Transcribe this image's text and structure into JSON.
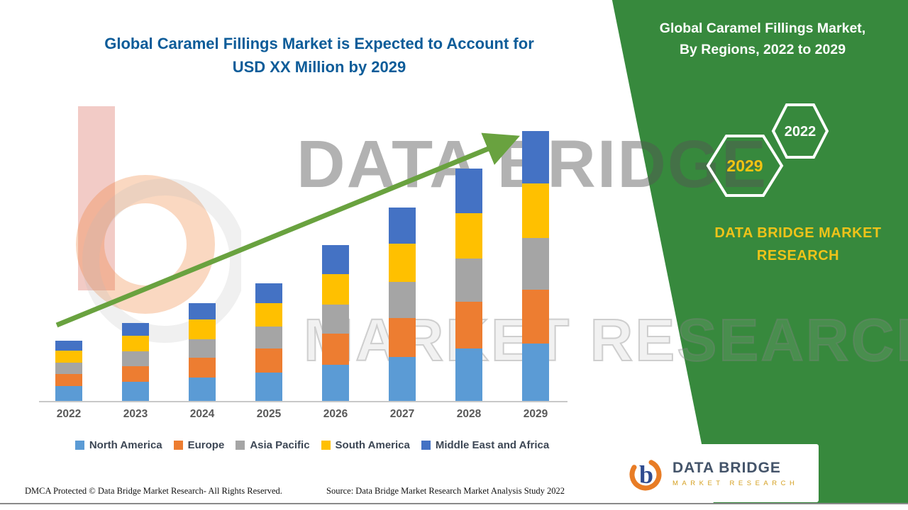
{
  "header": {
    "title_line1": "Global Caramel Fillings Market is Expected to Account for",
    "title_line2": "USD XX Million by 2029"
  },
  "side_panel": {
    "title_line1": "Global Caramel Fillings Market,",
    "title_line2": "By Regions, 2022 to 2029",
    "hexagon_front_label": "2029",
    "hexagon_back_label": "2022",
    "brand_line1": "DATA BRIDGE MARKET",
    "brand_line2": "RESEARCH"
  },
  "watermark": {
    "line1": "DATA BRIDGE",
    "line2": "MARKET RESEARCH"
  },
  "chart_data": {
    "type": "bar",
    "stacked": true,
    "title": "Global Caramel Fillings Market is Expected to Account for USD XX Million by 2029",
    "categories": [
      "2022",
      "2023",
      "2024",
      "2025",
      "2026",
      "2027",
      "2028",
      "2029"
    ],
    "series": [
      {
        "name": "North America",
        "color": "#5B9BD5",
        "values": [
          21,
          27,
          33,
          40,
          51,
          62,
          74,
          81
        ]
      },
      {
        "name": "Europe",
        "color": "#ED7D31",
        "values": [
          17,
          22,
          28,
          34,
          44,
          55,
          66,
          76
        ]
      },
      {
        "name": "Asia Pacific",
        "color": "#A5A5A5",
        "values": [
          16,
          21,
          26,
          31,
          41,
          51,
          61,
          73
        ]
      },
      {
        "name": "South America",
        "color": "#FFC000",
        "values": [
          17,
          22,
          28,
          33,
          43,
          54,
          64,
          77
        ]
      },
      {
        "name": "Middle East and Africa",
        "color": "#4472C4",
        "values": [
          14,
          18,
          23,
          28,
          41,
          51,
          63,
          74
        ]
      }
    ],
    "totals": [
      85,
      110,
      138,
      166,
      220,
      273,
      328,
      381
    ],
    "note": "Y-axis is unlabeled in the source (values shown as USD XX Million); series values are relative units estimated from bar heights.",
    "ylim": [
      0,
      420
    ],
    "grid": false,
    "y_axis_visible": false,
    "legend_position": "bottom",
    "trend_arrow": {
      "present": true,
      "direction": "up",
      "color": "#69A23F"
    }
  },
  "footer": {
    "dmca": "DMCA Protected © Data Bridge Market Research- All Rights Reserved.",
    "source": "Source: Data Bridge Market Research Market Analysis Study 2022"
  },
  "logo_box": {
    "name": "DATA BRIDGE",
    "tagline": "MARKET RESEARCH"
  },
  "colors": {
    "title_blue": "#0D5C99",
    "panel_green": "#37893D",
    "arrow_green": "#69A23F",
    "accent_gold": "#EFC319",
    "hexagon_year_gold": "#F2C411",
    "axis_label_gray": "#595959",
    "legend_text": "#3D4755"
  }
}
